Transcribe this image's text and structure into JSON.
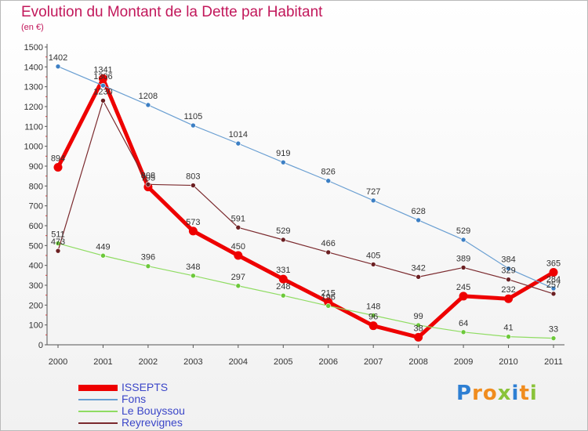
{
  "header": {
    "title": "Evolution du Montant de la Dette par Habitant",
    "subtitle": "(en €)"
  },
  "chart_data": {
    "type": "line",
    "title": "Evolution du Montant de la Dette par Habitant",
    "subtitle": "(en €)",
    "xlabel": "",
    "ylabel": "",
    "x": [
      "2000",
      "2001",
      "2002",
      "2003",
      "2004",
      "2005",
      "2006",
      "2007",
      "2008",
      "2009",
      "2010",
      "2011"
    ],
    "ylim": [
      0,
      1500
    ],
    "yticks": [
      0,
      100,
      200,
      300,
      400,
      500,
      600,
      700,
      800,
      900,
      1000,
      1100,
      1200,
      1300,
      1400,
      1500
    ],
    "grid": false,
    "legend_position": "bottom-left",
    "series": [
      {
        "name": "ISSEPTS",
        "color": "#ee0000",
        "values": [
          894,
          1341,
          795,
          573,
          450,
          331,
          215,
          96,
          38,
          245,
          232,
          365
        ]
      },
      {
        "name": "Fons",
        "color": "#6a9fd2",
        "values": [
          1402,
          1306,
          1208,
          1105,
          1014,
          919,
          826,
          727,
          628,
          529,
          384,
          284
        ]
      },
      {
        "name": "Le Bouyssou",
        "color": "#8fdc62",
        "values": [
          511,
          449,
          396,
          348,
          297,
          248,
          196,
          148,
          99,
          64,
          41,
          33
        ]
      },
      {
        "name": "Reyrevignes",
        "color": "#7b2a2e",
        "values": [
          473,
          1230,
          808,
          803,
          591,
          529,
          466,
          405,
          342,
          389,
          329,
          257
        ]
      }
    ]
  },
  "logo": {
    "letters": [
      {
        "ch": "P",
        "color": "#2e7fd3"
      },
      {
        "ch": "r",
        "color": "#f08c1e"
      },
      {
        "ch": "o",
        "color": "#f08c1e"
      },
      {
        "ch": "x",
        "color": "#8ac33a"
      },
      {
        "ch": "i",
        "color": "#2e7fd3"
      },
      {
        "ch": "t",
        "color": "#f08c1e"
      },
      {
        "ch": "i",
        "color": "#8ac33a"
      }
    ]
  }
}
